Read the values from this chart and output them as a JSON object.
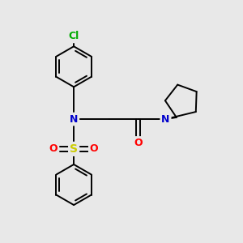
{
  "background_color": "#e8e8e8",
  "atom_colors": {
    "C": "#000000",
    "N": "#0000cc",
    "O": "#ff0000",
    "S": "#cccc00",
    "Cl": "#00aa00"
  },
  "bond_color": "#000000",
  "bond_width": 1.4,
  "figsize": [
    3.0,
    3.0
  ],
  "dpi": 100
}
